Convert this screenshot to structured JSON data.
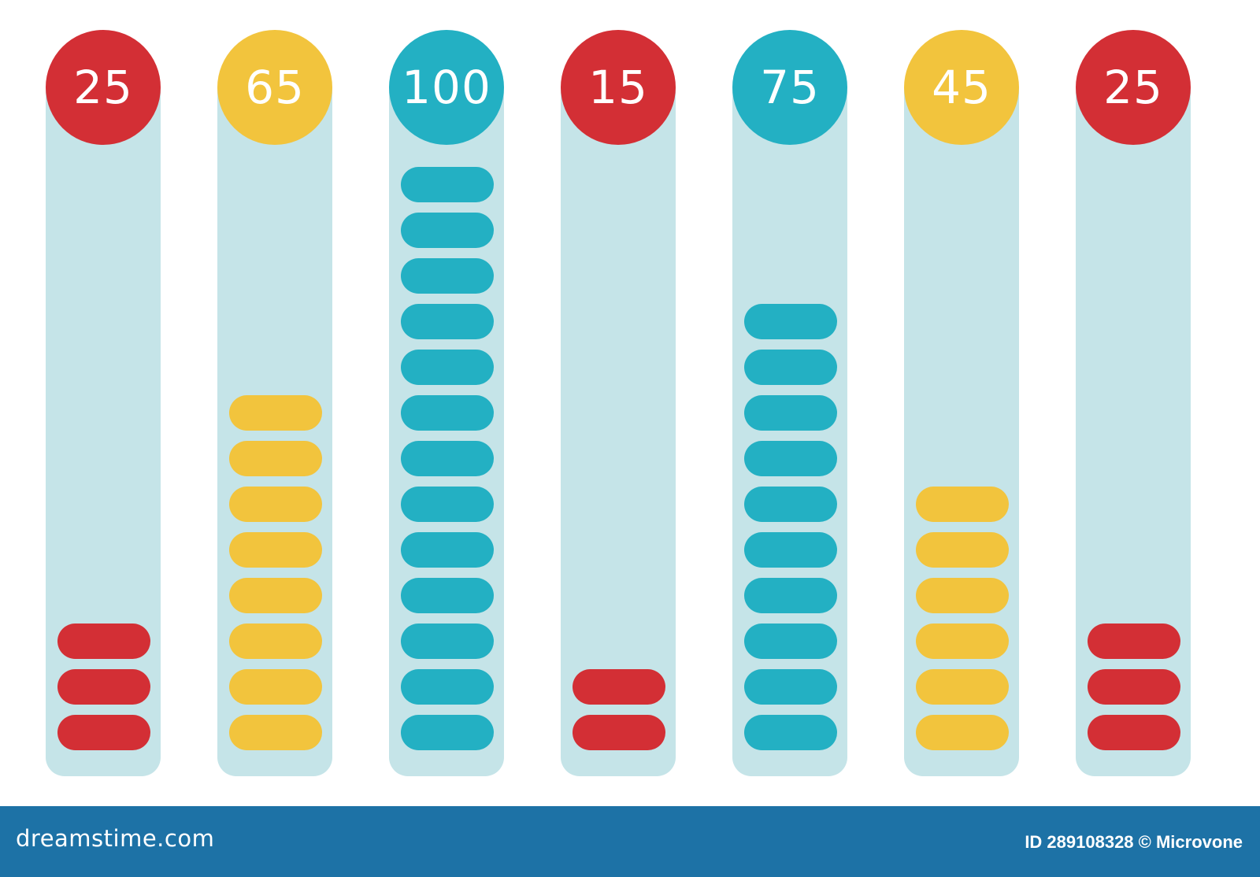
{
  "colors": {
    "red": "#d32f35",
    "yellow": "#f2c43d",
    "teal": "#23b0c3",
    "track": "#c5e4e8",
    "footer": "#1d72a6"
  },
  "meters": [
    {
      "label": "25",
      "value": 25,
      "segments": 3,
      "color": "red"
    },
    {
      "label": "65",
      "value": 65,
      "segments": 8,
      "color": "yellow"
    },
    {
      "label": "100",
      "value": 100,
      "segments": 13,
      "color": "teal"
    },
    {
      "label": "15",
      "value": 15,
      "segments": 2,
      "color": "red"
    },
    {
      "label": "75",
      "value": 75,
      "segments": 10,
      "color": "teal"
    },
    {
      "label": "45",
      "value": 45,
      "segments": 6,
      "color": "yellow"
    },
    {
      "label": "25",
      "value": 25,
      "segments": 3,
      "color": "red"
    }
  ],
  "footer": {
    "site": "dreamstime.com",
    "credit": "ID 289108328 © Microvone"
  }
}
